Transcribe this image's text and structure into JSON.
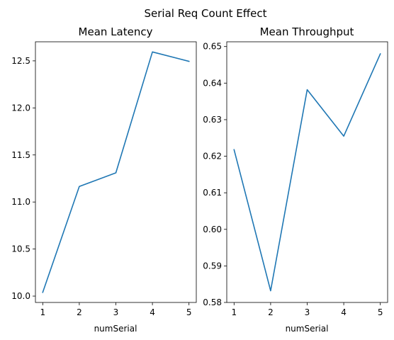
{
  "figure": {
    "suptitle": "Serial Req Count Effect"
  },
  "chart_data": [
    {
      "type": "line",
      "title": "Mean Latency",
      "xlabel": "numSerial",
      "ylabel": "",
      "x": [
        1,
        2,
        3,
        4,
        5
      ],
      "series": [
        {
          "values": [
            10.04,
            11.165,
            11.31,
            12.595,
            12.495
          ],
          "color": "#1f77b4"
        }
      ],
      "xlim": [
        0.8,
        5.2
      ],
      "ylim": [
        9.9325,
        12.7025
      ],
      "xticks": [
        1,
        2,
        3,
        4,
        5
      ],
      "yticks": [
        10.0,
        10.5,
        11.0,
        11.5,
        12.0,
        12.5
      ],
      "ytick_labels": [
        "10.0",
        "10.5",
        "11.0",
        "11.5",
        "12.0",
        "12.5"
      ],
      "grid": false
    },
    {
      "type": "line",
      "title": "Mean Throughput",
      "xlabel": "numSerial",
      "ylabel": "",
      "x": [
        1,
        2,
        3,
        4,
        5
      ],
      "series": [
        {
          "values": [
            0.6218,
            0.5832,
            0.6382,
            0.6255,
            0.648
          ],
          "color": "#1f77b4"
        }
      ],
      "xlim": [
        0.8,
        5.2
      ],
      "ylim": [
        0.58,
        0.6513
      ],
      "xticks": [
        1,
        2,
        3,
        4,
        5
      ],
      "yticks": [
        0.58,
        0.59,
        0.6,
        0.61,
        0.62,
        0.63,
        0.64,
        0.65
      ],
      "ytick_labels": [
        "0.58",
        "0.59",
        "0.60",
        "0.61",
        "0.62",
        "0.63",
        "0.64",
        "0.65"
      ],
      "grid": false
    }
  ]
}
